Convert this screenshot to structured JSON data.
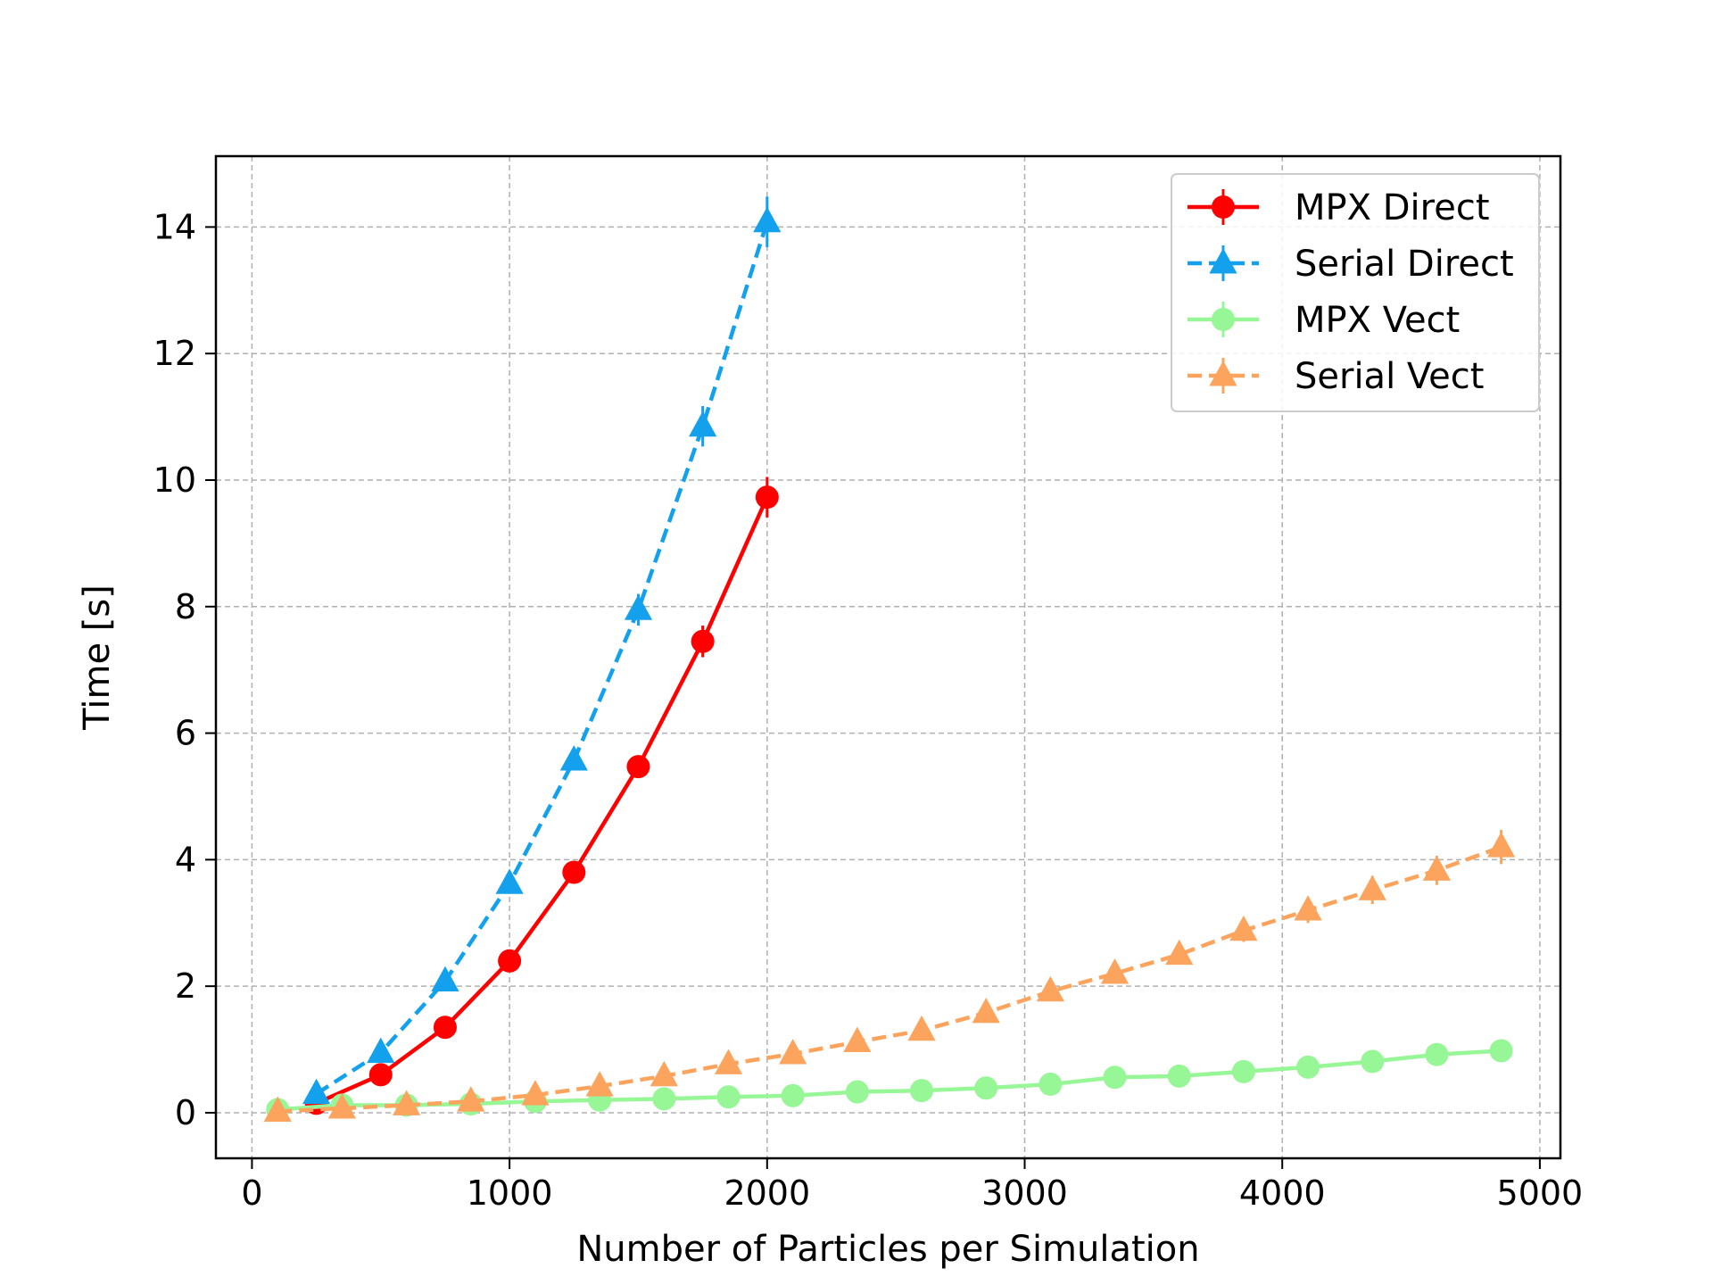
{
  "chart_data": {
    "type": "line",
    "title": "",
    "xlabel": "Number of Particles per Simulation",
    "ylabel": "Time [s]",
    "xlim": [
      -140,
      5080
    ],
    "ylim": [
      -0.72,
      15.12
    ],
    "xticks": [
      0,
      1000,
      2000,
      3000,
      4000,
      5000
    ],
    "yticks": [
      0,
      2,
      4,
      6,
      8,
      10,
      12,
      14
    ],
    "grid": true,
    "legend_position": "top-right",
    "series": [
      {
        "name": "MPX Direct",
        "color": "#ff0000",
        "linestyle": "solid",
        "marker": "circle",
        "x": [
          250,
          500,
          750,
          1000,
          1250,
          1500,
          1750,
          2000
        ],
        "y": [
          0.15,
          0.6,
          1.35,
          2.4,
          3.8,
          5.47,
          7.45,
          9.73
        ],
        "yerr": [
          0.04,
          0.06,
          0.08,
          0.1,
          0.12,
          0.18,
          0.25,
          0.32
        ]
      },
      {
        "name": "Serial Direct",
        "color": "#13a1ee",
        "linestyle": "dashed",
        "marker": "triangle",
        "x": [
          250,
          500,
          750,
          1000,
          1250,
          1500,
          1750,
          2000
        ],
        "y": [
          0.3,
          0.95,
          2.08,
          3.62,
          5.57,
          7.95,
          10.85,
          14.08
        ],
        "yerr": [
          0.04,
          0.07,
          0.1,
          0.13,
          0.16,
          0.25,
          0.32,
          0.4
        ]
      },
      {
        "name": "MPX Vect",
        "color": "#97f797",
        "linestyle": "solid",
        "marker": "circle",
        "x": [
          100,
          350,
          600,
          850,
          1100,
          1350,
          1600,
          1850,
          2100,
          2350,
          2600,
          2850,
          3100,
          3350,
          3600,
          3850,
          4100,
          4350,
          4600,
          4850
        ],
        "y": [
          0.05,
          0.12,
          0.12,
          0.14,
          0.18,
          0.2,
          0.22,
          0.25,
          0.27,
          0.33,
          0.35,
          0.39,
          0.45,
          0.56,
          0.58,
          0.65,
          0.72,
          0.81,
          0.92,
          0.98
        ],
        "yerr": [
          0.02,
          0.02,
          0.02,
          0.02,
          0.02,
          0.03,
          0.03,
          0.03,
          0.03,
          0.04,
          0.04,
          0.04,
          0.05,
          0.05,
          0.05,
          0.06,
          0.06,
          0.06,
          0.07,
          0.07
        ]
      },
      {
        "name": "Serial Vect",
        "color": "#fca45d",
        "linestyle": "dashed",
        "marker": "triangle",
        "x": [
          100,
          350,
          600,
          850,
          1100,
          1350,
          1600,
          1850,
          2100,
          2350,
          2600,
          2850,
          3100,
          3350,
          3600,
          3850,
          4100,
          4350,
          4600,
          4850
        ],
        "y": [
          0.02,
          0.07,
          0.12,
          0.18,
          0.28,
          0.42,
          0.58,
          0.77,
          0.93,
          1.12,
          1.3,
          1.58,
          1.92,
          2.2,
          2.5,
          2.88,
          3.2,
          3.52,
          3.83,
          4.2
        ],
        "yerr": [
          0.02,
          0.02,
          0.02,
          0.03,
          0.03,
          0.04,
          0.05,
          0.05,
          0.06,
          0.07,
          0.08,
          0.1,
          0.12,
          0.14,
          0.15,
          0.18,
          0.2,
          0.22,
          0.23,
          0.27
        ]
      }
    ]
  }
}
